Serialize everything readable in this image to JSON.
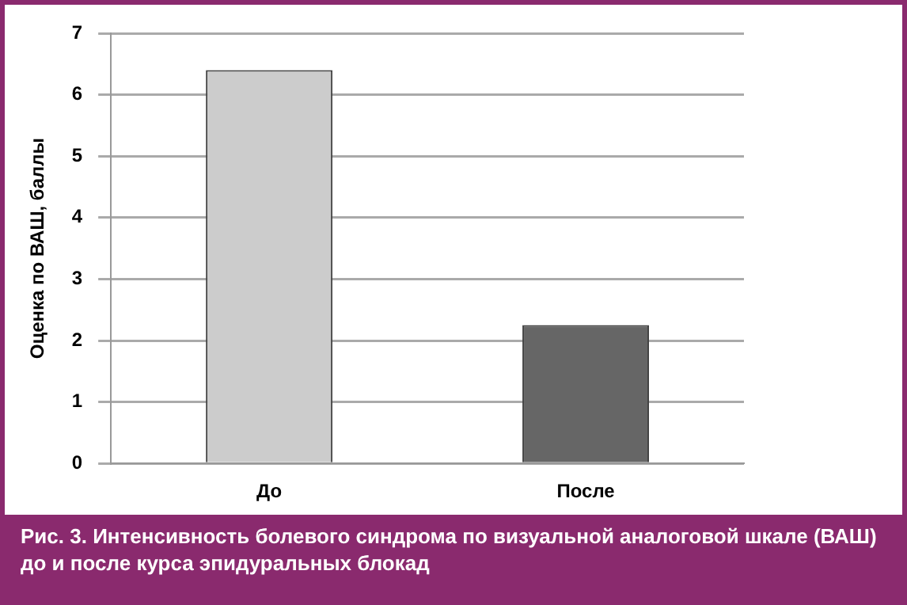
{
  "chart_data": {
    "type": "bar",
    "title": "Рис. 3. Интенсивность болевого синдрома по визуальной аналоговой шкале (ВАШ) до и после курса эпидуральных блокад",
    "ylabel": "Оценка по ВАШ, баллы",
    "categories": [
      "До",
      "После"
    ],
    "values": [
      6.4,
      2.25
    ],
    "colors": [
      "#cccccc",
      "#666666"
    ],
    "ylim": [
      0,
      7
    ],
    "yticks": [
      0,
      1,
      2,
      3,
      4,
      5,
      6,
      7
    ],
    "grid": "y"
  }
}
